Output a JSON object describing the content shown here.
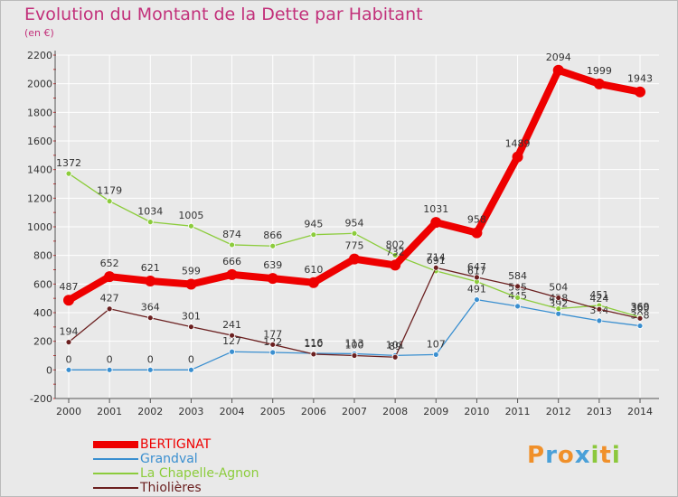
{
  "header": {
    "title": "Evolution du Montant de la Dette par Habitant",
    "subtitle": "(en €)"
  },
  "colors": {
    "background": "#e9e9e9",
    "title": "#c2307a",
    "grid": "#ffffff",
    "axis": "#555555"
  },
  "chart_data": {
    "type": "line",
    "x": [
      "2000",
      "2001",
      "2002",
      "2003",
      "2004",
      "2005",
      "2006",
      "2007",
      "2008",
      "2009",
      "2010",
      "2011",
      "2012",
      "2013",
      "2014"
    ],
    "ylim": [
      -200,
      2200
    ],
    "yticks": [
      "-200",
      "0",
      "200",
      "400",
      "600",
      "800",
      "1000",
      "1200",
      "1400",
      "1600",
      "1800",
      "2000",
      "2200"
    ],
    "grid": true,
    "legend_position": "bottom-left",
    "series": [
      {
        "name": "BERTIGNAT",
        "color": "#ee0000",
        "values": [
          487,
          652,
          621,
          599,
          666,
          639,
          610,
          775,
          732,
          1031,
          958,
          1489,
          2094,
          1999,
          1943
        ],
        "labels": [
          "487",
          "652",
          "621",
          "599",
          "666",
          "639",
          "610",
          "775",
          "732",
          "1031",
          "958",
          "1489",
          "2094",
          "1999",
          "1943"
        ]
      },
      {
        "name": "Grandval",
        "color": "#3a8fd0",
        "values": [
          0,
          0,
          0,
          0,
          127,
          122,
          116,
          113,
          101,
          107,
          491,
          445,
          392,
          344,
          308
        ],
        "labels": [
          "0",
          "0",
          "0",
          "0",
          "127",
          "122",
          "116",
          "113",
          "101",
          "107",
          "491",
          "445",
          "392",
          "344",
          "308"
        ]
      },
      {
        "name": "La Chapelle-Agnon",
        "color": "#8ccc3c",
        "values": [
          1372,
          1179,
          1034,
          1005,
          874,
          866,
          945,
          954,
          802,
          691,
          617,
          505,
          428,
          451,
          369
        ],
        "labels": [
          "1372",
          "1179",
          "1034",
          "1005",
          "874",
          "866",
          "945",
          "954",
          "802",
          "691",
          "617",
          "505",
          "428",
          "451",
          "369"
        ]
      },
      {
        "name": "Thiolières",
        "color": "#6b2020",
        "values": [
          194,
          427,
          364,
          301,
          241,
          177,
          110,
          100,
          89,
          714,
          647,
          584,
          504,
          424,
          360
        ],
        "labels": [
          "194",
          "427",
          "364",
          "301",
          "241",
          "177",
          "110",
          "100",
          "89",
          "714",
          "647",
          "584",
          "504",
          "424",
          "360"
        ]
      }
    ]
  },
  "logo": {
    "letters": [
      "P",
      "r",
      "o",
      "x",
      "i",
      "t",
      "i"
    ],
    "colors": [
      "#f0902a",
      "#4aa0d8",
      "#f0902a",
      "#4aa0d8",
      "#8cc83c",
      "#f0902a",
      "#8cc83c"
    ]
  }
}
